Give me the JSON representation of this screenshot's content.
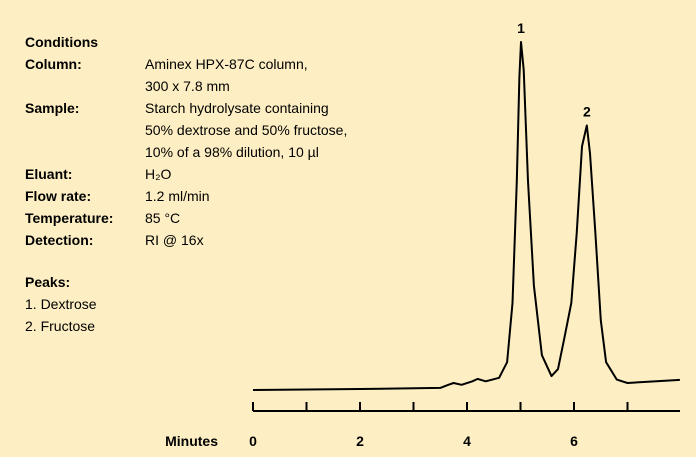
{
  "conditions": {
    "title": "Conditions",
    "rows": [
      {
        "label": "Column:",
        "lines": [
          "Aminex HPX-87C column,",
          "300 x 7.8 mm"
        ]
      },
      {
        "label": "Sample:",
        "lines": [
          "Starch hydrolysate containing",
          "50% dextrose and 50% fructose,",
          "10% of a 98% dilution, 10 µl"
        ]
      },
      {
        "label": "Eluant:",
        "lines": [
          "H₂O"
        ]
      },
      {
        "label": "Flow rate:",
        "lines": [
          "1.2 ml/min"
        ]
      },
      {
        "label": "Temperature:",
        "lines": [
          "85 °C"
        ]
      },
      {
        "label": "Detection:",
        "lines": [
          "RI @ 16x"
        ]
      }
    ]
  },
  "peaks": {
    "title": "Peaks:",
    "items": [
      "1. Dextrose",
      "2. Fructose"
    ]
  },
  "chart_data": {
    "type": "line",
    "x_label": "Minutes",
    "color": "#000000",
    "x": [
      0,
      2,
      3.5,
      3.65,
      3.75,
      3.9,
      4.1,
      4.2,
      4.35,
      4.6,
      4.75,
      4.85,
      4.93,
      4.98,
      5.01,
      5.06,
      5.14,
      5.25,
      5.4,
      5.58,
      5.7,
      5.82,
      5.95,
      6.05,
      6.15,
      6.24,
      6.3,
      6.4,
      6.5,
      6.6,
      6.8,
      7.0,
      7.98
    ],
    "values": [
      0,
      0.3,
      0.6,
      1.5,
      2.0,
      1.5,
      2.5,
      3.2,
      2.5,
      3.5,
      8,
      25,
      60,
      90,
      100,
      92,
      60,
      30,
      10,
      4,
      6,
      15,
      25,
      45,
      70,
      76,
      68,
      45,
      20,
      8,
      3,
      2,
      2.9
    ],
    "xlim": [
      0,
      8
    ],
    "ylim": [
      0,
      100
    ],
    "xticks": [
      0,
      2,
      4,
      6
    ],
    "minor_xticks": [
      1,
      3,
      5,
      7
    ],
    "annotations": [
      {
        "text": "1",
        "x": 5.01,
        "y": 100
      },
      {
        "text": "2",
        "x": 6.24,
        "y": 76
      }
    ]
  }
}
